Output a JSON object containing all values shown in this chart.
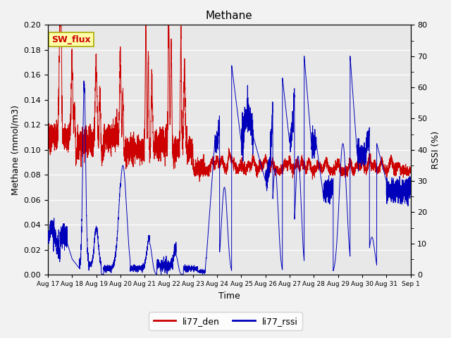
{
  "title": "Methane",
  "xlabel": "Time",
  "ylabel_left": "Methane (mmol/m3)",
  "ylabel_right": "RSSI (%)",
  "ylim_left": [
    0.0,
    0.2
  ],
  "ylim_right": [
    0,
    80
  ],
  "yticks_left": [
    0.0,
    0.02,
    0.04,
    0.06,
    0.08,
    0.1,
    0.12,
    0.14,
    0.16,
    0.18,
    0.2
  ],
  "yticks_right": [
    0,
    10,
    20,
    30,
    40,
    50,
    60,
    70,
    80
  ],
  "color_red": "#CC0000",
  "color_blue": "#0000BB",
  "background_color": "#E8E8E8",
  "fig_bg": "#F2F2F2",
  "legend_entries": [
    "li77_den",
    "li77_rssi"
  ],
  "annotation_text": "SW_flux",
  "annotation_bg": "#FFFFAA",
  "annotation_border": "#AAAA00",
  "x_tick_labels": [
    "Aug 17",
    "Aug 18",
    "Aug 19",
    "Aug 20",
    "Aug 21",
    "Aug 22",
    "Aug 23",
    "Aug 24",
    "Aug 25",
    "Aug 26",
    "Aug 27",
    "Aug 28",
    "Aug 29",
    "Aug 30",
    "Aug 31",
    "Sep 1"
  ],
  "n_points": 5000
}
